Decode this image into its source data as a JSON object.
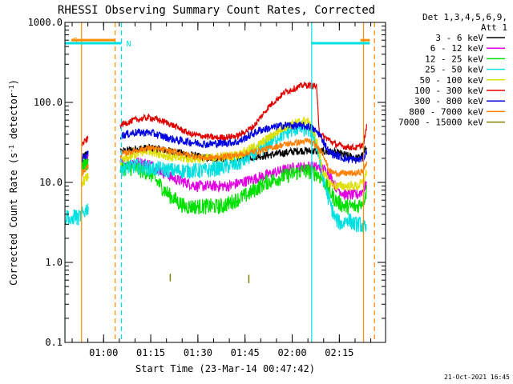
{
  "chart_data": {
    "type": "line",
    "title": "RHESSI Observing Summary Count Rates, Corrected",
    "xlabel": "Start Time (23-Mar-14 00:47:42)",
    "ylabel_main": "Corrected Count Rate (s",
    "ylabel_sup": "-1",
    "ylabel_mid": " detector",
    "ylabel_tail": ")",
    "yscale": "log",
    "ylim": [
      0.1,
      1000
    ],
    "xlim": [
      0,
      102
    ],
    "x_unit": "minutes since 00:47:42",
    "y_ticks": [
      {
        "value": 0.1,
        "label": "0.1"
      },
      {
        "value": 1,
        "label": "1.0"
      },
      {
        "value": 10,
        "label": "10.0"
      },
      {
        "value": 100,
        "label": "100.0"
      },
      {
        "value": 1000,
        "label": "1000.0"
      }
    ],
    "x_ticks": [
      {
        "value": 12.3,
        "label": "01:00"
      },
      {
        "value": 27.3,
        "label": "01:15"
      },
      {
        "value": 42.3,
        "label": "01:30"
      },
      {
        "value": 57.3,
        "label": "01:45"
      },
      {
        "value": 72.3,
        "label": "02:00"
      },
      {
        "value": 87.3,
        "label": "02:15"
      }
    ],
    "legend_header": [
      "Det 1,3,4,5,6,9,",
      "Att 1"
    ],
    "flags": [
      {
        "name": "S",
        "color": "#ff8c00",
        "y": 600,
        "segments": [
          [
            2,
            16
          ],
          [
            94,
            97
          ]
        ],
        "label_x": 2
      },
      {
        "name": "N",
        "color": "#00e0e0",
        "y": 550,
        "segments": [
          [
            0,
            18
          ],
          [
            78.5,
            97
          ]
        ],
        "label_x": 19
      }
    ],
    "vlines": [
      {
        "x": 0,
        "color": "#00e0e0",
        "dash": false
      },
      {
        "x": 5.3,
        "color": "#ff8c00",
        "dash": false
      },
      {
        "x": 16,
        "color": "#ff8c00",
        "dash": true
      },
      {
        "x": 18,
        "color": "#00e0e0",
        "dash": true
      },
      {
        "x": 78.5,
        "color": "#00e0e0",
        "dash": false
      },
      {
        "x": 95,
        "color": "#ff8c00",
        "dash": false
      },
      {
        "x": 98.5,
        "color": "#ff8c00",
        "dash": true
      }
    ],
    "gaps": [
      [
        7.5,
        17.5
      ]
    ],
    "series": [
      {
        "name": "3 - 6 keV",
        "color": "#000000",
        "noise": 0.05,
        "points": [
          [
            5.5,
            20
          ],
          [
            7.5,
            24
          ],
          [
            17.5,
            24
          ],
          [
            22,
            26
          ],
          [
            27,
            27
          ],
          [
            35,
            24
          ],
          [
            45,
            20
          ],
          [
            55,
            20
          ],
          [
            65,
            22
          ],
          [
            75,
            25
          ],
          [
            85,
            24
          ],
          [
            89,
            22
          ],
          [
            93,
            20
          ],
          [
            95,
            22
          ],
          [
            96,
            30
          ]
        ]
      },
      {
        "name": "6 - 12 keV",
        "color": "#e000e0",
        "noise": 0.07,
        "points": [
          [
            5.5,
            17
          ],
          [
            7.5,
            20
          ],
          [
            17.5,
            17
          ],
          [
            22,
            18
          ],
          [
            27,
            17
          ],
          [
            35,
            11
          ],
          [
            42,
            9
          ],
          [
            52,
            9
          ],
          [
            60,
            11
          ],
          [
            66,
            13
          ],
          [
            72,
            15
          ],
          [
            78,
            16
          ],
          [
            82,
            15
          ],
          [
            84,
            13
          ],
          [
            86,
            9
          ],
          [
            89,
            7
          ],
          [
            93,
            7
          ],
          [
            95,
            8
          ],
          [
            96,
            10
          ]
        ]
      },
      {
        "name": "12 - 25 keV",
        "color": "#00e000",
        "noise": 0.1,
        "points": [
          [
            5.5,
            16
          ],
          [
            7.5,
            18
          ],
          [
            17.5,
            15
          ],
          [
            22,
            15
          ],
          [
            27,
            13
          ],
          [
            33,
            7
          ],
          [
            38,
            5
          ],
          [
            50,
            5
          ],
          [
            58,
            7
          ],
          [
            64,
            10
          ],
          [
            70,
            12
          ],
          [
            76,
            14
          ],
          [
            80,
            13
          ],
          [
            82,
            11
          ],
          [
            84,
            8
          ],
          [
            86,
            6
          ],
          [
            89,
            5
          ],
          [
            93,
            5
          ],
          [
            95,
            6
          ],
          [
            96,
            8
          ]
        ]
      },
      {
        "name": "25 - 50 keV",
        "color": "#00e0e0",
        "noise": 0.1,
        "points": [
          [
            0,
            3.5
          ],
          [
            1,
            4
          ],
          [
            2,
            3
          ],
          [
            3,
            4
          ],
          [
            4,
            3.5
          ],
          [
            5.5,
            4
          ],
          [
            17.5,
            15
          ],
          [
            22,
            16
          ],
          [
            27,
            15
          ],
          [
            35,
            14
          ],
          [
            45,
            14
          ],
          [
            55,
            17
          ],
          [
            62,
            25
          ],
          [
            68,
            38
          ],
          [
            74,
            48
          ],
          [
            78,
            45
          ],
          [
            80,
            30
          ],
          [
            82,
            12
          ],
          [
            84,
            6
          ],
          [
            86,
            3.5
          ],
          [
            88,
            3
          ],
          [
            90,
            3.5
          ],
          [
            92,
            3
          ],
          [
            94,
            3
          ],
          [
            96,
            2.5
          ]
        ]
      },
      {
        "name": "50 - 100 keV",
        "color": "#e0e000",
        "noise": 0.06,
        "points": [
          [
            5.5,
            10
          ],
          [
            7.5,
            12
          ],
          [
            17.5,
            18
          ],
          [
            22,
            22
          ],
          [
            27,
            25
          ],
          [
            35,
            20
          ],
          [
            45,
            20
          ],
          [
            55,
            22
          ],
          [
            62,
            30
          ],
          [
            70,
            50
          ],
          [
            77,
            60
          ],
          [
            80,
            35
          ],
          [
            82,
            14
          ],
          [
            84,
            10
          ],
          [
            86,
            9
          ],
          [
            89,
            9
          ],
          [
            93,
            9
          ],
          [
            95,
            10
          ],
          [
            96,
            14
          ]
        ]
      },
      {
        "name": "100 - 300 keV",
        "color": "#e00000",
        "noise": 0.04,
        "points": [
          [
            5.5,
            30
          ],
          [
            7.5,
            36
          ],
          [
            17.5,
            52
          ],
          [
            22,
            60
          ],
          [
            27,
            65
          ],
          [
            33,
            55
          ],
          [
            40,
            40
          ],
          [
            48,
            36
          ],
          [
            55,
            38
          ],
          [
            60,
            50
          ],
          [
            65,
            90
          ],
          [
            70,
            135
          ],
          [
            76,
            165
          ],
          [
            80,
            160
          ],
          [
            81,
            40
          ],
          [
            84,
            34
          ],
          [
            86,
            30
          ],
          [
            89,
            28
          ],
          [
            93,
            27
          ],
          [
            95,
            30
          ],
          [
            96,
            50
          ]
        ]
      },
      {
        "name": "300 - 800 keV",
        "color": "#0000e0",
        "noise": 0.05,
        "points": [
          [
            5.5,
            20
          ],
          [
            7.5,
            23
          ],
          [
            17.5,
            38
          ],
          [
            22,
            42
          ],
          [
            27,
            42
          ],
          [
            35,
            34
          ],
          [
            45,
            30
          ],
          [
            55,
            32
          ],
          [
            62,
            45
          ],
          [
            70,
            52
          ],
          [
            78,
            50
          ],
          [
            81,
            40
          ],
          [
            84,
            24
          ],
          [
            86,
            22
          ],
          [
            89,
            20
          ],
          [
            93,
            19
          ],
          [
            95,
            20
          ],
          [
            96,
            25
          ]
        ]
      },
      {
        "name": "800 - 7000 keV",
        "color": "#ff8000",
        "noise": 0.04,
        "points": [
          [
            5.5,
            13
          ],
          [
            7.5,
            16
          ],
          [
            17.5,
            22
          ],
          [
            22,
            25
          ],
          [
            27,
            27
          ],
          [
            35,
            24
          ],
          [
            45,
            20
          ],
          [
            55,
            22
          ],
          [
            62,
            25
          ],
          [
            70,
            30
          ],
          [
            78,
            33
          ],
          [
            82,
            24
          ],
          [
            84,
            14
          ],
          [
            86,
            13
          ],
          [
            89,
            13
          ],
          [
            93,
            13
          ],
          [
            95,
            14
          ],
          [
            96,
            18
          ]
        ]
      },
      {
        "name": "7000 - 15000 keV",
        "color": "#808000",
        "noise": 0.0,
        "points": []
      }
    ],
    "spikes": [
      {
        "x": 33.5,
        "y0": 0.58,
        "y1": 0.72,
        "color": "#808000"
      },
      {
        "x": 58.5,
        "y0": 0.55,
        "y1": 0.7,
        "color": "#808000"
      }
    ]
  },
  "footer": {
    "timestamp": "21-Oct-2021 16:45"
  }
}
